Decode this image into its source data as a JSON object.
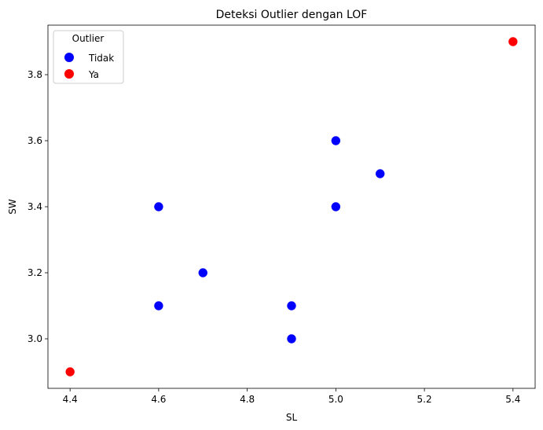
{
  "chart_data": {
    "type": "scatter",
    "title": "Deteksi Outlier dengan LOF",
    "xlabel": "SL",
    "ylabel": "SW",
    "xlim": [
      4.35,
      5.45
    ],
    "ylim": [
      2.85,
      3.95
    ],
    "xticks": [
      4.4,
      4.6,
      4.8,
      5.0,
      5.2,
      5.4
    ],
    "xtick_labels": [
      "4.4",
      "4.6",
      "4.8",
      "5.0",
      "5.2",
      "5.4"
    ],
    "yticks": [
      3.0,
      3.2,
      3.4,
      3.6,
      3.8
    ],
    "ytick_labels": [
      "3.0",
      "3.2",
      "3.4",
      "3.6",
      "3.8"
    ],
    "grid": false,
    "legend": {
      "title": "Outlier",
      "placement": "top-left",
      "entries": [
        {
          "label": "Tidak",
          "color": "#0000ff"
        },
        {
          "label": "Ya",
          "color": "#ff0000"
        }
      ]
    },
    "series": [
      {
        "name": "Tidak",
        "color": "#0000ff",
        "points": [
          {
            "x": 4.6,
            "y": 3.1
          },
          {
            "x": 4.6,
            "y": 3.4
          },
          {
            "x": 4.7,
            "y": 3.2
          },
          {
            "x": 4.9,
            "y": 3.0
          },
          {
            "x": 4.9,
            "y": 3.1
          },
          {
            "x": 5.0,
            "y": 3.4
          },
          {
            "x": 5.0,
            "y": 3.6
          },
          {
            "x": 5.1,
            "y": 3.5
          }
        ]
      },
      {
        "name": "Ya",
        "color": "#ff0000",
        "points": [
          {
            "x": 4.4,
            "y": 2.9
          },
          {
            "x": 5.4,
            "y": 3.9
          }
        ]
      }
    ]
  }
}
